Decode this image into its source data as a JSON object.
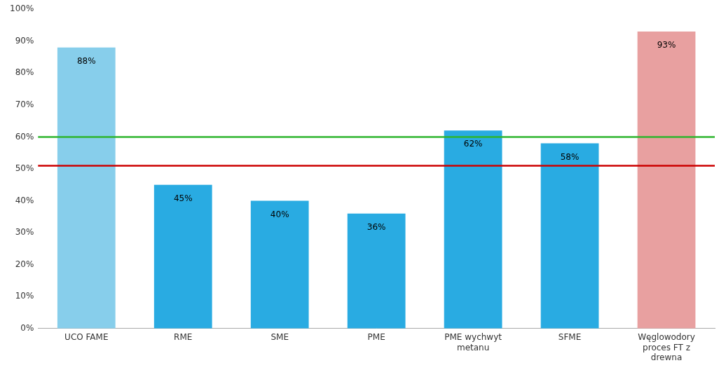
{
  "chart_data": {
    "type": "bar",
    "categories": [
      "UCO FAME",
      "RME",
      "SME",
      "PME",
      "PME wychwyt\nmetanu",
      "SFME",
      "Węglowodory\nproces FT z\ndrewna"
    ],
    "values": [
      88,
      45,
      40,
      36,
      62,
      58,
      93
    ],
    "value_labels": [
      "88%",
      "45%",
      "40%",
      "36%",
      "62%",
      "58%",
      "93%"
    ],
    "data_labels": true,
    "colors": [
      "#87CEEB",
      "#29ABE2",
      "#29ABE2",
      "#29ABE2",
      "#29ABE2",
      "#29ABE2",
      "#E8A0A0"
    ],
    "hlines": [
      {
        "value": 60,
        "color": "#2DB52D"
      },
      {
        "value": 51,
        "color": "#CC0000"
      }
    ],
    "ylim": [
      0,
      100
    ],
    "yticks": [
      {
        "value": 0,
        "label": "0%"
      },
      {
        "value": 10,
        "label": "10%"
      },
      {
        "value": 20,
        "label": "20%"
      },
      {
        "value": 30,
        "label": "30%"
      },
      {
        "value": 40,
        "label": "40%"
      },
      {
        "value": 50,
        "label": "50%"
      },
      {
        "value": 60,
        "label": "60%"
      },
      {
        "value": 70,
        "label": "70%"
      },
      {
        "value": 80,
        "label": "80%"
      },
      {
        "value": 90,
        "label": "90%"
      },
      {
        "value": 100,
        "label": "100%"
      }
    ],
    "grid": false
  }
}
